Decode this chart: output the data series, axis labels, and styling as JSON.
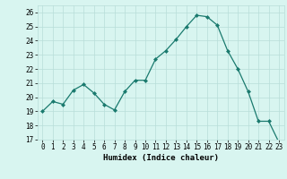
{
  "x": [
    0,
    1,
    2,
    3,
    4,
    5,
    6,
    7,
    8,
    9,
    10,
    11,
    12,
    13,
    14,
    15,
    16,
    17,
    18,
    19,
    20,
    21,
    22,
    23
  ],
  "y": [
    19.0,
    19.7,
    19.5,
    20.5,
    20.9,
    20.3,
    19.5,
    19.1,
    20.4,
    21.2,
    21.2,
    22.7,
    23.3,
    24.1,
    25.0,
    25.8,
    25.7,
    25.1,
    23.3,
    22.0,
    20.4,
    18.3,
    18.3,
    16.8
  ],
  "line_color": "#1a7a6e",
  "marker": "D",
  "marker_size": 2,
  "bg_color": "#d8f5f0",
  "grid_color": "#b8ddd8",
  "xlabel": "Humidex (Indice chaleur)",
  "xlim": [
    -0.5,
    23.5
  ],
  "ylim": [
    17,
    26.5
  ],
  "yticks": [
    17,
    18,
    19,
    20,
    21,
    22,
    23,
    24,
    25,
    26
  ],
  "xticks": [
    0,
    1,
    2,
    3,
    4,
    5,
    6,
    7,
    8,
    9,
    10,
    11,
    12,
    13,
    14,
    15,
    16,
    17,
    18,
    19,
    20,
    21,
    22,
    23
  ],
  "tick_fontsize": 5.5,
  "label_fontsize": 6.5
}
